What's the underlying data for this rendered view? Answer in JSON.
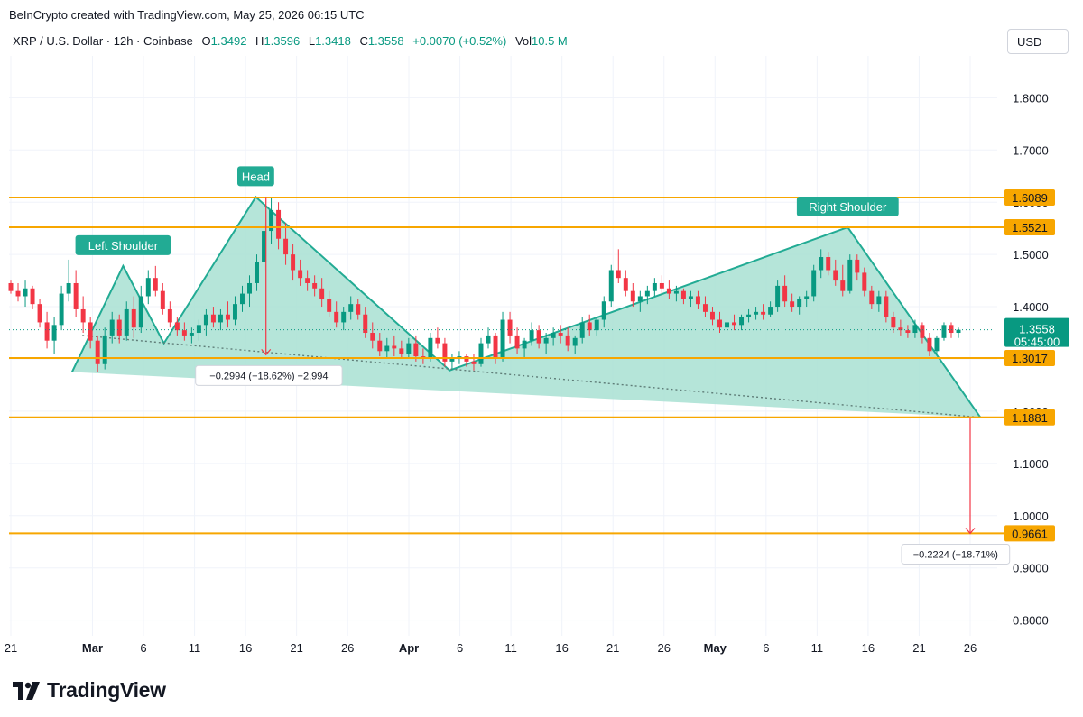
{
  "header": {
    "credit": "BeInCrypto created with TradingView.com, May 25, 2026 06:15 UTC",
    "symbol": "XRP / U.S. Dollar · 12h · Coinbase",
    "open_label": "O",
    "open": "1.3492",
    "high_label": "H",
    "high": "1.3596",
    "low_label": "L",
    "low": "1.3418",
    "close_label": "C",
    "close": "1.3558",
    "change": "+0.0070 (+0.52%)",
    "vol_label": "Vol",
    "vol": "10.5 M",
    "currency": "USD"
  },
  "brand": {
    "name": "TradingView"
  },
  "colors": {
    "up": "#089981",
    "down": "#f23645",
    "level": "#f7a600",
    "pattern": "#22ab94",
    "fill": "#a8e0d2"
  },
  "chart_data": {
    "type": "candlestick",
    "ylim": [
      0.77,
      1.88
    ],
    "y_ticks": [
      "0.8000",
      "0.9000",
      "1.0000",
      "1.1000",
      "1.2000",
      "1.3000",
      "1.4000",
      "1.5000",
      "1.6000",
      "1.7000",
      "1.8000"
    ],
    "x_ticks": [
      {
        "label": "21",
        "date": "2026-02-21"
      },
      {
        "label": "Mar",
        "date": "2026-03-01"
      },
      {
        "label": "6",
        "date": "2026-03-06"
      },
      {
        "label": "11",
        "date": "2026-03-11"
      },
      {
        "label": "16",
        "date": "2026-03-16"
      },
      {
        "label": "21",
        "date": "2026-03-21"
      },
      {
        "label": "26",
        "date": "2026-03-26"
      },
      {
        "label": "Apr",
        "date": "2026-04-01"
      },
      {
        "label": "6",
        "date": "2026-04-06"
      },
      {
        "label": "11",
        "date": "2026-04-11"
      },
      {
        "label": "16",
        "date": "2026-04-16"
      },
      {
        "label": "21",
        "date": "2026-04-21"
      },
      {
        "label": "26",
        "date": "2026-04-26"
      },
      {
        "label": "May",
        "date": "2026-05-01"
      },
      {
        "label": "6",
        "date": "2026-05-06"
      },
      {
        "label": "11",
        "date": "2026-05-11"
      },
      {
        "label": "16",
        "date": "2026-05-16"
      },
      {
        "label": "21",
        "date": "2026-05-21"
      },
      {
        "label": "26",
        "date": "2026-05-26"
      }
    ],
    "levels": [
      {
        "value": 1.6089,
        "label": "1.6089"
      },
      {
        "value": 1.5521,
        "label": "1.5521"
      },
      {
        "value": 1.3017,
        "label": "1.3017"
      },
      {
        "value": 1.1881,
        "label": "1.1881"
      },
      {
        "value": 0.9661,
        "label": "0.9661"
      }
    ],
    "last_price": {
      "value": 1.3558,
      "label": "1.3558",
      "countdown": "05:45:00"
    },
    "pattern_points": [
      {
        "date": "2026-02-27",
        "value": 1.275
      },
      {
        "date": "2026-03-04",
        "value": 1.478
      },
      {
        "date": "2026-03-08",
        "value": 1.33
      },
      {
        "date": "2026-03-17",
        "value": 1.61
      },
      {
        "date": "2026-04-05",
        "value": 1.278
      },
      {
        "date": "2026-05-14",
        "value": 1.552
      },
      {
        "date": "2026-05-27",
        "value": 1.188
      }
    ],
    "neckline": [
      {
        "date": "2026-02-28",
        "value": 1.345
      },
      {
        "date": "2026-05-27",
        "value": 1.188
      }
    ],
    "annotations": [
      {
        "text": "Left Shoulder",
        "date": "2026-03-04",
        "value": 1.478
      },
      {
        "text": "Head",
        "date": "2026-03-17",
        "value": 1.61
      },
      {
        "text": "Right Shoulder",
        "date": "2026-05-14",
        "value": 1.552
      }
    ],
    "measures": [
      {
        "date": "2026-03-18",
        "from": 1.61,
        "to": 1.308,
        "text": "−0.2994 (−18.62%) −2,994"
      },
      {
        "date": "2026-05-26",
        "from": 1.188,
        "to": 0.966,
        "text": "−0.2224 (−18.71%)"
      }
    ],
    "ohlc": [
      [
        1.445,
        1.45,
        1.425,
        1.43
      ],
      [
        1.43,
        1.445,
        1.41,
        1.42
      ],
      [
        1.42,
        1.45,
        1.4,
        1.435
      ],
      [
        1.435,
        1.44,
        1.395,
        1.405
      ],
      [
        1.405,
        1.415,
        1.36,
        1.37
      ],
      [
        1.37,
        1.39,
        1.32,
        1.335
      ],
      [
        1.335,
        1.38,
        1.31,
        1.365
      ],
      [
        1.365,
        1.44,
        1.355,
        1.425
      ],
      [
        1.425,
        1.49,
        1.41,
        1.445
      ],
      [
        1.445,
        1.47,
        1.38,
        1.395
      ],
      [
        1.395,
        1.42,
        1.35,
        1.37
      ],
      [
        1.37,
        1.38,
        1.32,
        1.335
      ],
      [
        1.335,
        1.345,
        1.275,
        1.29
      ],
      [
        1.29,
        1.36,
        1.28,
        1.345
      ],
      [
        1.345,
        1.39,
        1.33,
        1.375
      ],
      [
        1.375,
        1.385,
        1.33,
        1.345
      ],
      [
        1.345,
        1.41,
        1.335,
        1.395
      ],
      [
        1.395,
        1.42,
        1.34,
        1.36
      ],
      [
        1.36,
        1.44,
        1.35,
        1.42
      ],
      [
        1.42,
        1.47,
        1.405,
        1.455
      ],
      [
        1.455,
        1.478,
        1.42,
        1.43
      ],
      [
        1.43,
        1.445,
        1.385,
        1.395
      ],
      [
        1.395,
        1.41,
        1.36,
        1.37
      ],
      [
        1.37,
        1.38,
        1.345,
        1.355
      ],
      [
        1.355,
        1.37,
        1.335,
        1.345
      ],
      [
        1.345,
        1.36,
        1.33,
        1.35
      ],
      [
        1.35,
        1.375,
        1.335,
        1.365
      ],
      [
        1.365,
        1.395,
        1.345,
        1.385
      ],
      [
        1.385,
        1.4,
        1.36,
        1.37
      ],
      [
        1.37,
        1.395,
        1.355,
        1.385
      ],
      [
        1.385,
        1.41,
        1.36,
        1.375
      ],
      [
        1.375,
        1.42,
        1.365,
        1.405
      ],
      [
        1.405,
        1.44,
        1.39,
        1.425
      ],
      [
        1.425,
        1.46,
        1.4,
        1.445
      ],
      [
        1.445,
        1.5,
        1.43,
        1.485
      ],
      [
        1.485,
        1.56,
        1.47,
        1.545
      ],
      [
        1.545,
        1.61,
        1.52,
        1.585
      ],
      [
        1.585,
        1.6,
        1.51,
        1.53
      ],
      [
        1.53,
        1.56,
        1.48,
        1.5
      ],
      [
        1.5,
        1.52,
        1.45,
        1.47
      ],
      [
        1.47,
        1.49,
        1.44,
        1.455
      ],
      [
        1.455,
        1.47,
        1.43,
        1.445
      ],
      [
        1.445,
        1.46,
        1.42,
        1.435
      ],
      [
        1.435,
        1.455,
        1.4,
        1.415
      ],
      [
        1.415,
        1.43,
        1.38,
        1.39
      ],
      [
        1.39,
        1.41,
        1.36,
        1.37
      ],
      [
        1.37,
        1.4,
        1.355,
        1.39
      ],
      [
        1.39,
        1.42,
        1.375,
        1.405
      ],
      [
        1.405,
        1.415,
        1.375,
        1.385
      ],
      [
        1.385,
        1.4,
        1.34,
        1.35
      ],
      [
        1.35,
        1.37,
        1.32,
        1.335
      ],
      [
        1.335,
        1.35,
        1.305,
        1.315
      ],
      [
        1.315,
        1.34,
        1.3,
        1.325
      ],
      [
        1.325,
        1.345,
        1.305,
        1.32
      ],
      [
        1.32,
        1.335,
        1.3,
        1.31
      ],
      [
        1.31,
        1.34,
        1.3,
        1.33
      ],
      [
        1.33,
        1.345,
        1.295,
        1.305
      ],
      [
        1.305,
        1.32,
        1.29,
        1.3
      ],
      [
        1.3,
        1.35,
        1.295,
        1.34
      ],
      [
        1.34,
        1.36,
        1.32,
        1.33
      ],
      [
        1.33,
        1.34,
        1.285,
        1.295
      ],
      [
        1.295,
        1.31,
        1.28,
        1.3
      ],
      [
        1.3,
        1.315,
        1.29,
        1.305
      ],
      [
        1.305,
        1.31,
        1.285,
        1.295
      ],
      [
        1.295,
        1.31,
        1.278,
        1.29
      ],
      [
        1.29,
        1.34,
        1.285,
        1.33
      ],
      [
        1.33,
        1.36,
        1.32,
        1.345
      ],
      [
        1.345,
        1.35,
        1.29,
        1.3
      ],
      [
        1.3,
        1.39,
        1.295,
        1.375
      ],
      [
        1.375,
        1.39,
        1.33,
        1.345
      ],
      [
        1.345,
        1.36,
        1.31,
        1.32
      ],
      [
        1.32,
        1.34,
        1.3,
        1.335
      ],
      [
        1.335,
        1.37,
        1.325,
        1.355
      ],
      [
        1.355,
        1.365,
        1.32,
        1.33
      ],
      [
        1.33,
        1.35,
        1.31,
        1.34
      ],
      [
        1.34,
        1.36,
        1.325,
        1.35
      ],
      [
        1.35,
        1.365,
        1.33,
        1.345
      ],
      [
        1.345,
        1.36,
        1.315,
        1.325
      ],
      [
        1.325,
        1.345,
        1.31,
        1.34
      ],
      [
        1.34,
        1.38,
        1.33,
        1.37
      ],
      [
        1.37,
        1.385,
        1.345,
        1.355
      ],
      [
        1.355,
        1.38,
        1.345,
        1.375
      ],
      [
        1.375,
        1.42,
        1.36,
        1.41
      ],
      [
        1.41,
        1.48,
        1.4,
        1.47
      ],
      [
        1.47,
        1.51,
        1.445,
        1.455
      ],
      [
        1.455,
        1.47,
        1.42,
        1.43
      ],
      [
        1.43,
        1.445,
        1.4,
        1.41
      ],
      [
        1.41,
        1.43,
        1.39,
        1.42
      ],
      [
        1.42,
        1.44,
        1.405,
        1.43
      ],
      [
        1.43,
        1.455,
        1.42,
        1.445
      ],
      [
        1.445,
        1.46,
        1.425,
        1.435
      ],
      [
        1.435,
        1.45,
        1.415,
        1.425
      ],
      [
        1.425,
        1.44,
        1.41,
        1.43
      ],
      [
        1.43,
        1.435,
        1.405,
        1.415
      ],
      [
        1.415,
        1.43,
        1.4,
        1.42
      ],
      [
        1.42,
        1.43,
        1.395,
        1.405
      ],
      [
        1.405,
        1.42,
        1.38,
        1.39
      ],
      [
        1.39,
        1.4,
        1.365,
        1.375
      ],
      [
        1.375,
        1.39,
        1.35,
        1.36
      ],
      [
        1.36,
        1.38,
        1.345,
        1.37
      ],
      [
        1.37,
        1.385,
        1.355,
        1.365
      ],
      [
        1.365,
        1.385,
        1.355,
        1.38
      ],
      [
        1.38,
        1.395,
        1.37,
        1.385
      ],
      [
        1.385,
        1.4,
        1.375,
        1.39
      ],
      [
        1.39,
        1.405,
        1.375,
        1.385
      ],
      [
        1.385,
        1.41,
        1.38,
        1.4
      ],
      [
        1.4,
        1.45,
        1.39,
        1.44
      ],
      [
        1.44,
        1.46,
        1.4,
        1.41
      ],
      [
        1.41,
        1.425,
        1.39,
        1.4
      ],
      [
        1.4,
        1.42,
        1.385,
        1.415
      ],
      [
        1.415,
        1.43,
        1.4,
        1.42
      ],
      [
        1.42,
        1.48,
        1.41,
        1.47
      ],
      [
        1.47,
        1.51,
        1.455,
        1.495
      ],
      [
        1.495,
        1.505,
        1.46,
        1.47
      ],
      [
        1.47,
        1.49,
        1.44,
        1.45
      ],
      [
        1.45,
        1.48,
        1.42,
        1.43
      ],
      [
        1.43,
        1.5,
        1.425,
        1.49
      ],
      [
        1.49,
        1.5,
        1.45,
        1.465
      ],
      [
        1.465,
        1.475,
        1.42,
        1.43
      ],
      [
        1.43,
        1.44,
        1.395,
        1.405
      ],
      [
        1.405,
        1.43,
        1.39,
        1.42
      ],
      [
        1.42,
        1.43,
        1.37,
        1.38
      ],
      [
        1.38,
        1.39,
        1.35,
        1.36
      ],
      [
        1.36,
        1.375,
        1.345,
        1.355
      ],
      [
        1.355,
        1.365,
        1.34,
        1.35
      ],
      [
        1.35,
        1.375,
        1.34,
        1.365
      ],
      [
        1.365,
        1.37,
        1.33,
        1.34
      ],
      [
        1.34,
        1.35,
        1.305,
        1.315
      ],
      [
        1.315,
        1.345,
        1.31,
        1.34
      ],
      [
        1.34,
        1.37,
        1.335,
        1.365
      ],
      [
        1.365,
        1.37,
        1.34,
        1.35
      ],
      [
        1.35,
        1.36,
        1.34,
        1.3558
      ]
    ]
  }
}
